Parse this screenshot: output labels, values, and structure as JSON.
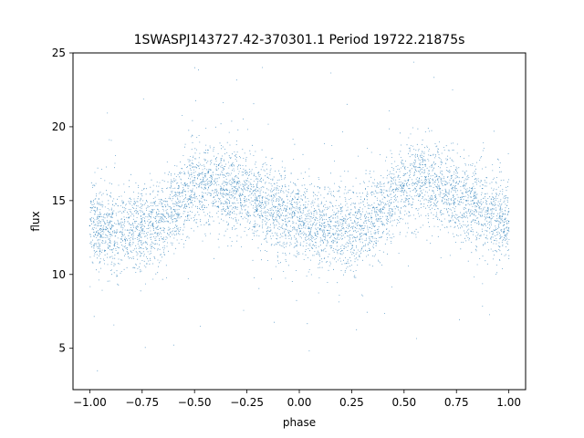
{
  "chart_data": {
    "type": "scatter",
    "title": "1SWASPJ143727.42-370301.1 Period 19722.21875s",
    "xlabel": "phase",
    "ylabel": "flux",
    "xlim": [
      -1.08,
      1.08
    ],
    "ylim": [
      2.2,
      25
    ],
    "x_ticks": [
      -1.0,
      -0.75,
      -0.5,
      -0.25,
      0.0,
      0.25,
      0.5,
      0.75,
      1.0
    ],
    "x_tick_labels": [
      "−1.00",
      "−0.75",
      "−0.50",
      "−0.25",
      "0.00",
      "0.25",
      "0.50",
      "0.75",
      "1.00"
    ],
    "y_ticks": [
      5,
      10,
      15,
      20,
      25
    ],
    "y_tick_labels": [
      "5",
      "10",
      "15",
      "20",
      "25"
    ],
    "grid": false,
    "point_color": "#1f77b4",
    "series": [
      {
        "description_points": "phase-folded light curve, mean flux profile vs phase",
        "x": [
          -1.0,
          -0.9,
          -0.8,
          -0.7,
          -0.6,
          -0.5,
          -0.4,
          -0.3,
          -0.2,
          -0.1,
          0.0,
          0.1,
          0.2,
          0.3,
          0.4,
          0.5,
          0.6,
          0.7,
          0.8,
          0.9,
          1.0
        ],
        "y": [
          13.3,
          13.1,
          13.0,
          13.3,
          14.4,
          16.0,
          16.2,
          15.6,
          15.0,
          14.3,
          13.6,
          13.1,
          13.0,
          13.3,
          14.4,
          16.0,
          16.2,
          15.6,
          15.0,
          14.3,
          13.6
        ]
      }
    ]
  }
}
